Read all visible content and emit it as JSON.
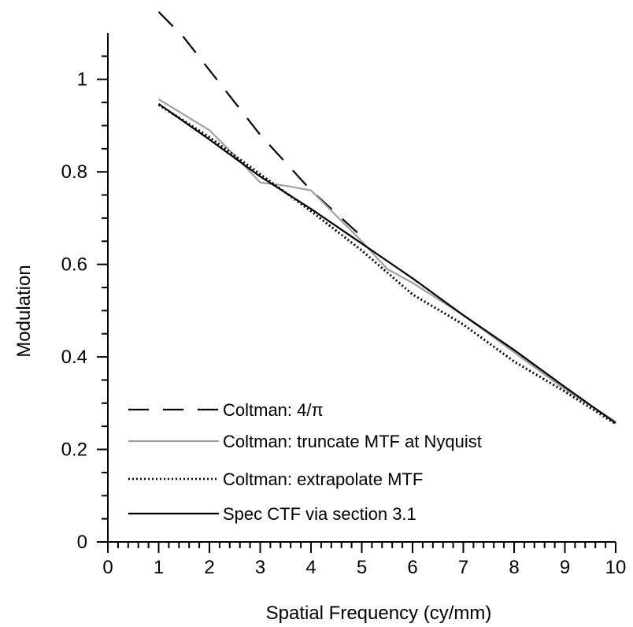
{
  "chart_data": {
    "type": "line",
    "xlabel": "Spatial Frequency (cy/mm)",
    "ylabel": "Modulation",
    "xlim": [
      0,
      10
    ],
    "ylim": [
      0,
      1.1
    ],
    "x_ticks": [
      0,
      1,
      2,
      3,
      4,
      5,
      6,
      7,
      8,
      9,
      10
    ],
    "y_ticks": [
      0,
      0.2,
      0.4,
      0.6,
      0.8,
      1
    ],
    "x_tick_labels": [
      "0",
      "1",
      "2",
      "3",
      "4",
      "5",
      "6",
      "7",
      "8",
      "9",
      "10"
    ],
    "y_tick_labels": [
      "0",
      "0.2",
      "0.4",
      "0.6",
      "0.8",
      "1"
    ],
    "grid": false,
    "legend_position": "bottom-left",
    "series": [
      {
        "name": "Coltman: 4/π",
        "style": "dashed",
        "color": "#000000",
        "x": [
          1.0,
          1.5,
          2.0,
          2.5,
          3.0,
          3.5,
          4.0,
          4.5,
          5.0
        ],
        "y": [
          1.146,
          1.09,
          1.02,
          0.95,
          0.88,
          0.82,
          0.76,
          0.71,
          0.66
        ]
      },
      {
        "name": "Coltman: truncate MTF at Nyquist",
        "style": "solid",
        "color": "#a0a0a0",
        "x": [
          1.0,
          2.0,
          2.5,
          3.0,
          3.5,
          4.0,
          5.0,
          5.5,
          6.0,
          7.0,
          8.0,
          9.0,
          10.0
        ],
        "y": [
          0.957,
          0.89,
          0.835,
          0.777,
          0.77,
          0.76,
          0.65,
          0.59,
          0.56,
          0.49,
          0.41,
          0.33,
          0.26
        ]
      },
      {
        "name": "Coltman: extrapolate MTF",
        "style": "dotted",
        "color": "#000000",
        "x": [
          1.0,
          2.0,
          3.0,
          4.0,
          5.0,
          6.0,
          7.0,
          8.0,
          9.0,
          10.0
        ],
        "y": [
          0.945,
          0.875,
          0.795,
          0.715,
          0.63,
          0.535,
          0.47,
          0.39,
          0.325,
          0.255
        ]
      },
      {
        "name": "Spec CTF via section 3.1",
        "style": "solid",
        "color": "#000000",
        "x": [
          1.0,
          2.0,
          3.0,
          4.0,
          5.0,
          6.0,
          7.0,
          8.0,
          9.0,
          10.0
        ],
        "y": [
          0.947,
          0.87,
          0.79,
          0.72,
          0.645,
          0.57,
          0.49,
          0.415,
          0.335,
          0.257
        ]
      }
    ]
  }
}
